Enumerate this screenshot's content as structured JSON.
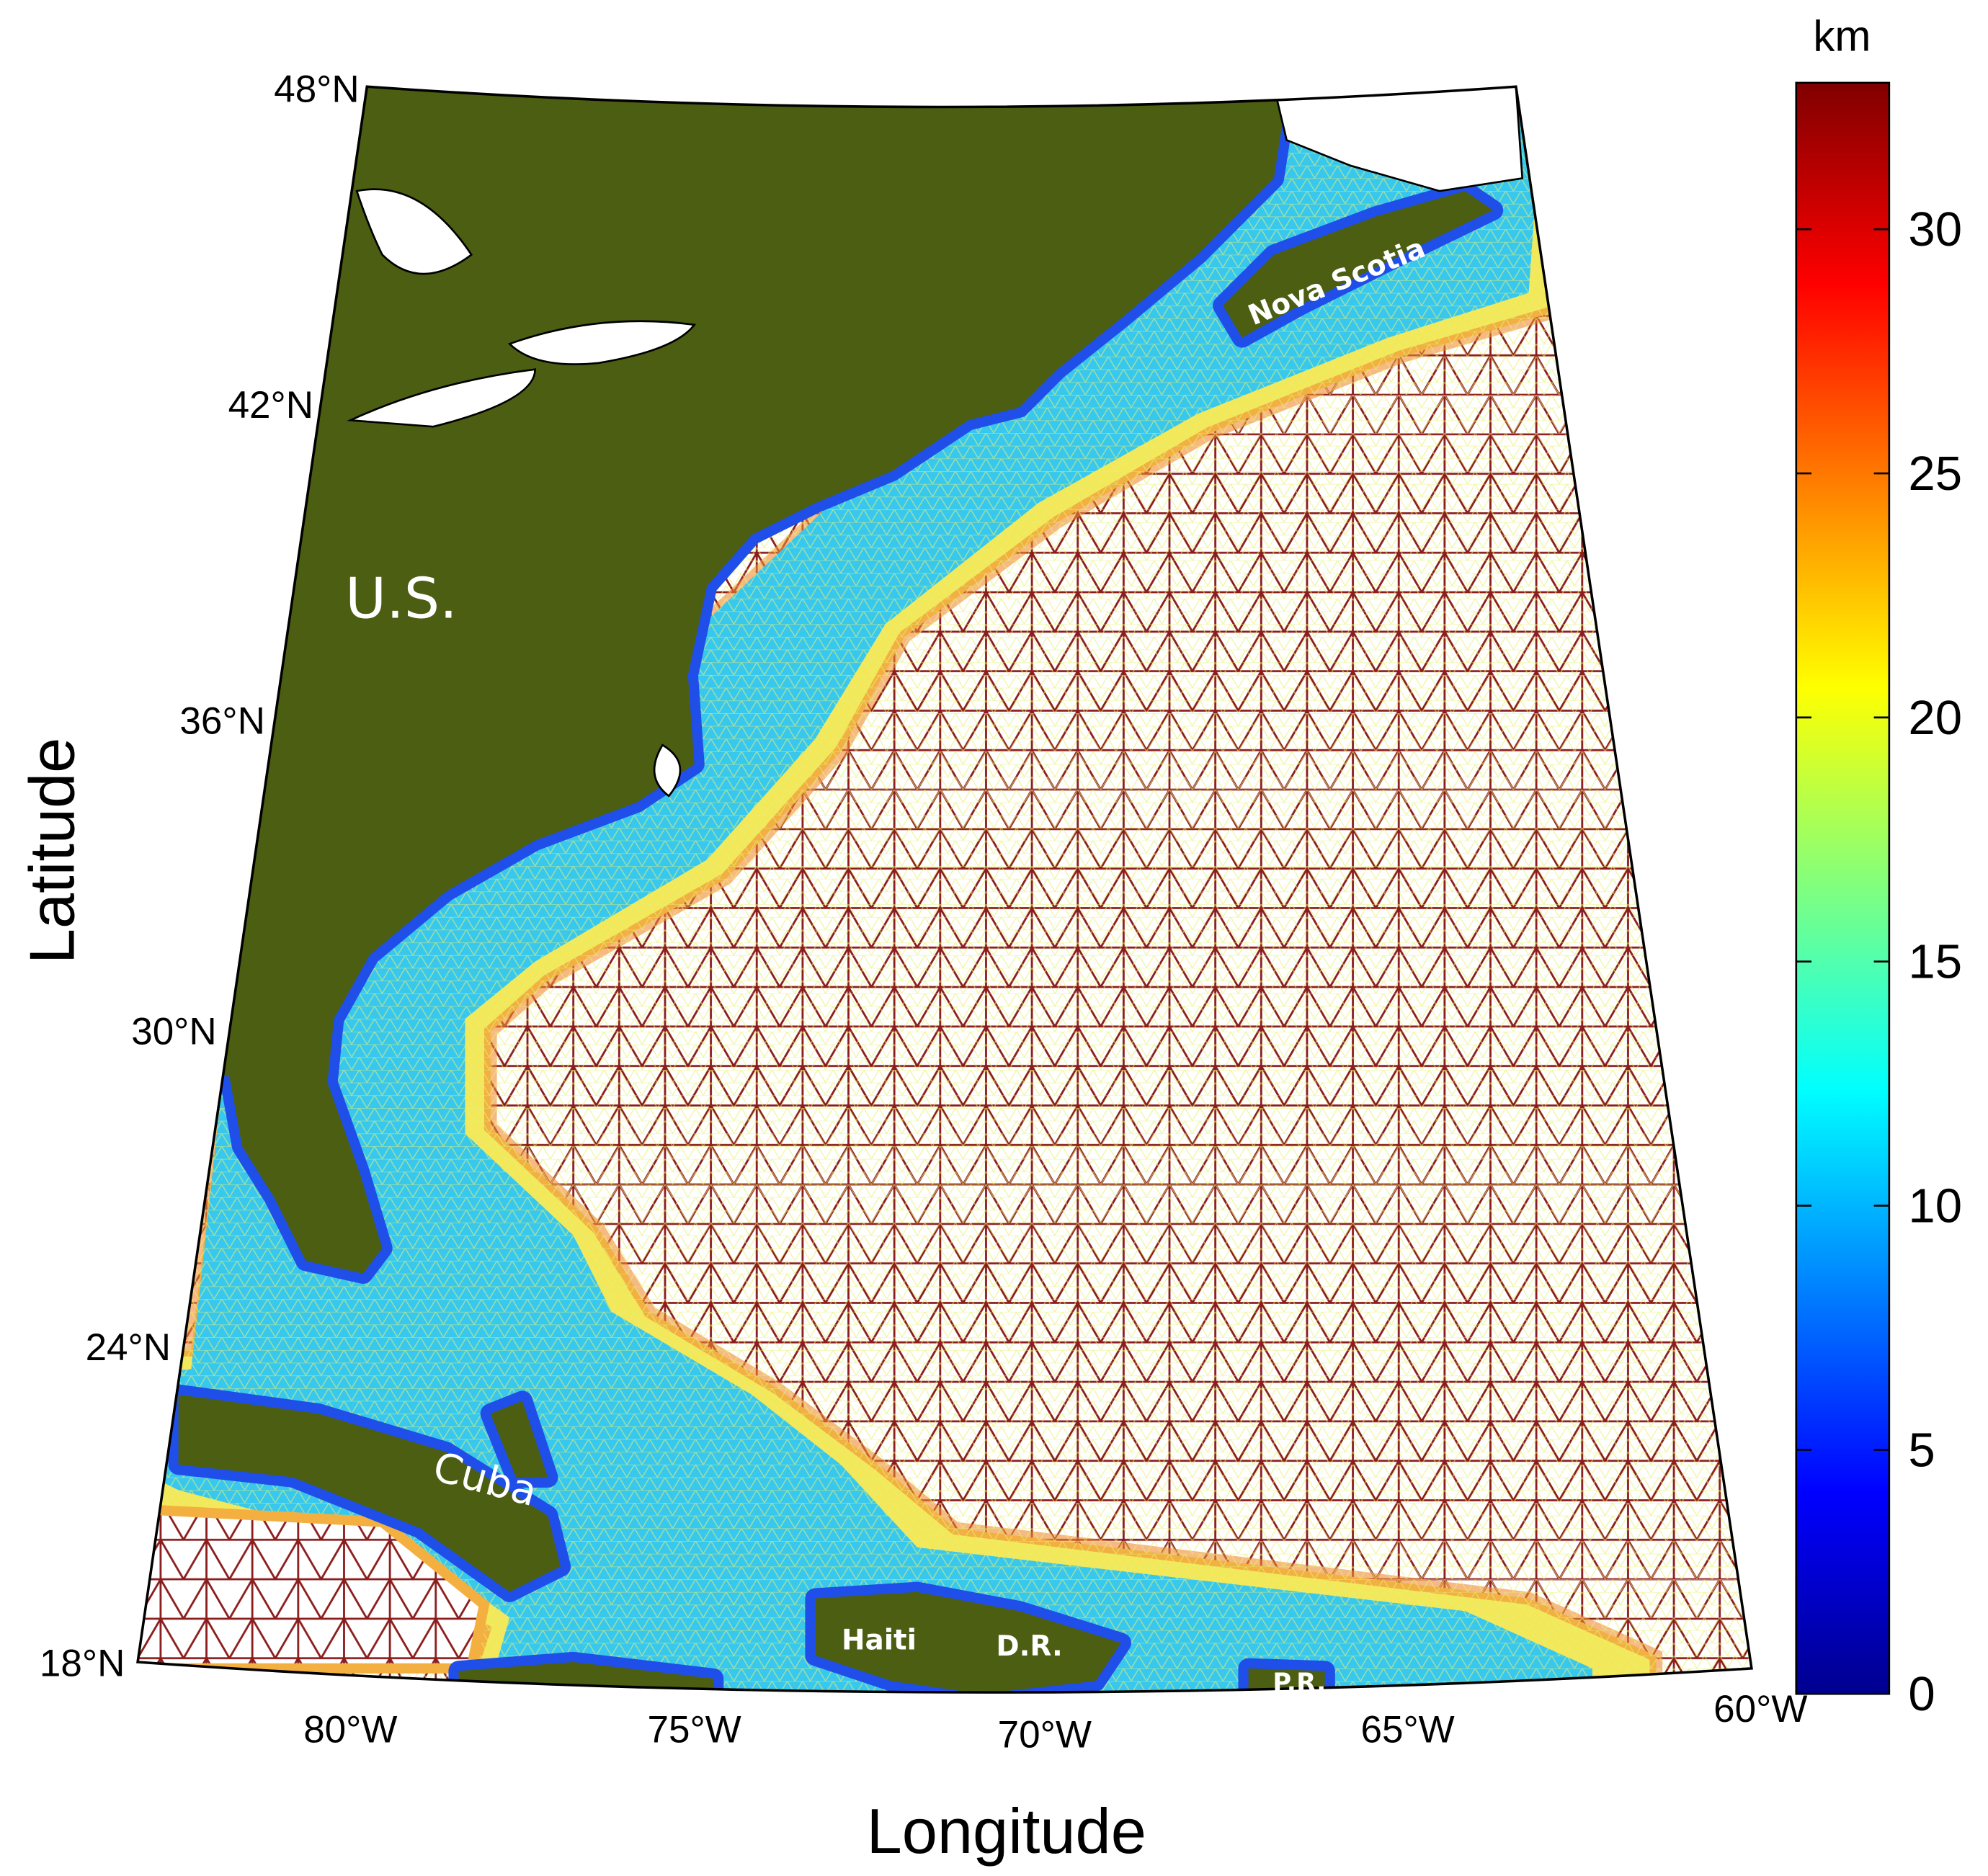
{
  "map": {
    "latitude_labels": [
      "48°N",
      "42°N",
      "36°N",
      "30°N",
      "24°N",
      "18°N"
    ],
    "longitude_labels": [
      "80°W",
      "75°W",
      "70°W",
      "65°W",
      "60°W"
    ],
    "x_axis_label": "Longitude",
    "y_axis_label": "Latitude",
    "annotations": [
      "U.S.",
      "Nova Scotia",
      "Cuba",
      "Haiti",
      "D.R.",
      "P.R."
    ]
  },
  "colorbar": {
    "label": "km",
    "lim": [
      0,
      33
    ],
    "ticks": [
      0,
      5,
      10,
      15,
      20,
      25,
      30
    ]
  }
}
